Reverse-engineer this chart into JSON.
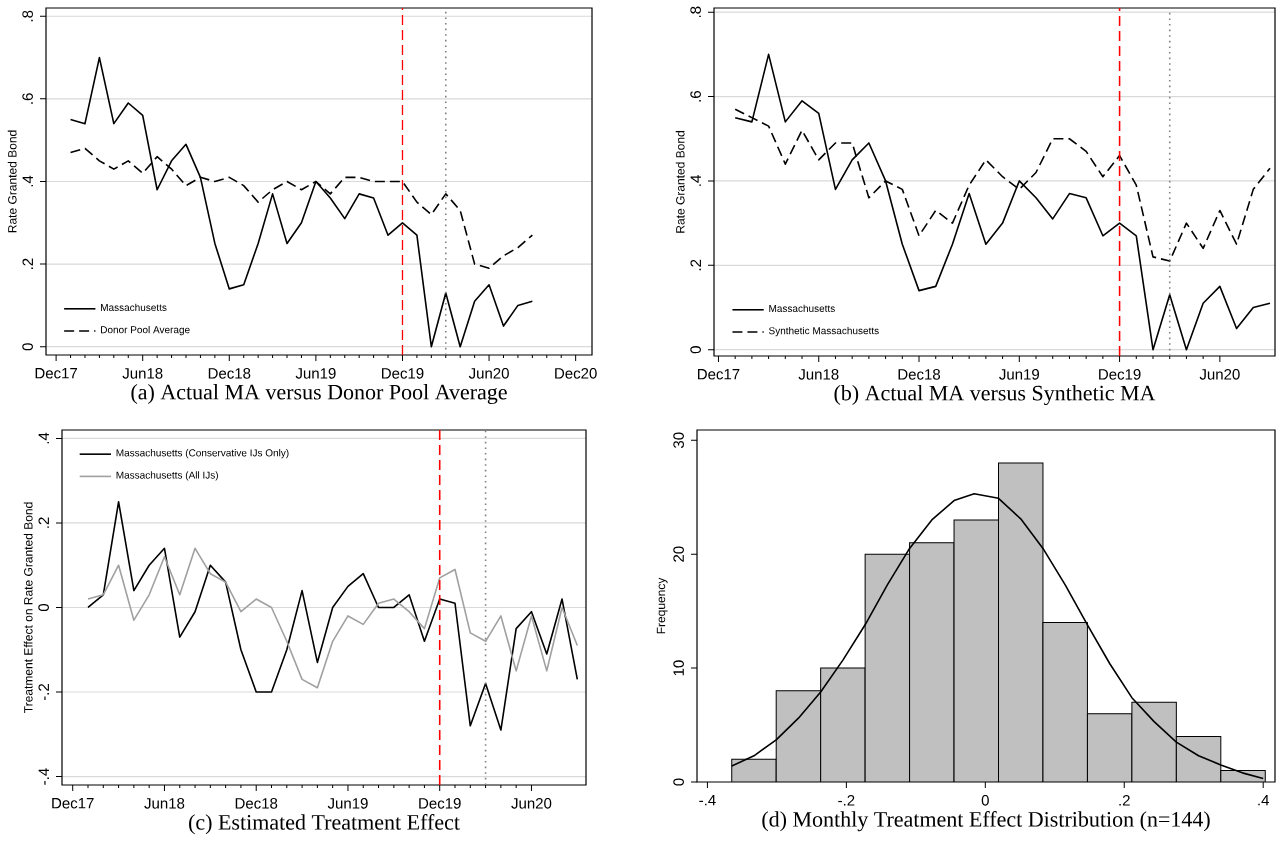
{
  "chart_data": [
    {
      "type": "line",
      "title": "(a) Actual MA versus Donor Pool Average",
      "ylabel": "Rate Granted Bond",
      "x": [
        "2018-01",
        "2018-02",
        "2018-03",
        "2018-04",
        "2018-05",
        "2018-06",
        "2018-07",
        "2018-08",
        "2018-09",
        "2018-10",
        "2018-11",
        "2018-12",
        "2019-01",
        "2019-02",
        "2019-03",
        "2019-04",
        "2019-05",
        "2019-06",
        "2019-07",
        "2019-08",
        "2019-09",
        "2019-10",
        "2019-11",
        "2019-12",
        "2020-01",
        "2020-02",
        "2020-03",
        "2020-04",
        "2020-05",
        "2020-06",
        "2020-07",
        "2020-08",
        "2020-09"
      ],
      "series": [
        {
          "name": "Massachusetts",
          "color": "#000000",
          "line_style": "solid",
          "values": [
            0.55,
            0.54,
            0.7,
            0.54,
            0.59,
            0.56,
            0.38,
            0.45,
            0.49,
            0.41,
            0.25,
            0.14,
            0.15,
            0.25,
            0.37,
            0.25,
            0.3,
            0.4,
            0.36,
            0.31,
            0.37,
            0.36,
            0.27,
            0.3,
            0.27,
            0.0,
            0.13,
            0.0,
            0.11,
            0.15,
            0.05,
            0.1,
            0.11
          ]
        },
        {
          "name": "Donor Pool Average",
          "color": "#000000",
          "line_style": "dashed",
          "values": [
            0.47,
            0.48,
            0.45,
            0.43,
            0.45,
            0.42,
            0.46,
            0.43,
            0.39,
            0.41,
            0.4,
            0.41,
            0.39,
            0.35,
            0.38,
            0.4,
            0.38,
            0.4,
            0.37,
            0.41,
            0.41,
            0.4,
            0.4,
            0.4,
            0.35,
            0.32,
            0.37,
            0.33,
            0.2,
            0.19,
            0.22,
            0.24,
            0.27
          ]
        }
      ],
      "xlim": [
        "2017-11-10",
        "2021-01-05"
      ],
      "ylim": [
        -0.02,
        0.82
      ],
      "xticks": [
        {
          "value": "2017-12",
          "label": "Dec17"
        },
        {
          "value": "2018-06",
          "label": "Jun18"
        },
        {
          "value": "2018-12",
          "label": "Dec18"
        },
        {
          "value": "2019-06",
          "label": "Jun19"
        },
        {
          "value": "2019-12",
          "label": "Dec19"
        },
        {
          "value": "2020-06",
          "label": "Jun20"
        },
        {
          "value": "2020-12",
          "label": "Dec20"
        }
      ],
      "yticks": [
        0,
        {
          "value": 0.2,
          "label": ".2"
        },
        {
          "value": 0.4,
          "label": ".4"
        },
        {
          "value": 0.6,
          "label": ".6"
        },
        {
          "value": 0.8,
          "label": ".8"
        }
      ],
      "ref_lines": [
        {
          "axis": "x",
          "value": "2019-12",
          "color": "#ff0000",
          "line_style": "dashed"
        },
        {
          "axis": "x",
          "value": "2020-03",
          "color": "#808080",
          "line_style": "dotted"
        }
      ],
      "grid": "y",
      "legend": "bottom left"
    },
    {
      "type": "line",
      "title": "(b) Actual MA versus Synthetic MA",
      "ylabel": "Rate Granted Bond",
      "x": [
        "2018-01",
        "2018-02",
        "2018-03",
        "2018-04",
        "2018-05",
        "2018-06",
        "2018-07",
        "2018-08",
        "2018-09",
        "2018-10",
        "2018-11",
        "2018-12",
        "2019-01",
        "2019-02",
        "2019-03",
        "2019-04",
        "2019-05",
        "2019-06",
        "2019-07",
        "2019-08",
        "2019-09",
        "2019-10",
        "2019-11",
        "2019-12",
        "2020-01",
        "2020-02",
        "2020-03",
        "2020-04",
        "2020-05",
        "2020-06",
        "2020-07",
        "2020-08",
        "2020-09"
      ],
      "series": [
        {
          "name": "Massachusetts",
          "color": "#000000",
          "line_style": "solid",
          "values": [
            0.55,
            0.54,
            0.7,
            0.54,
            0.59,
            0.56,
            0.38,
            0.45,
            0.49,
            0.4,
            0.25,
            0.14,
            0.15,
            0.25,
            0.37,
            0.25,
            0.3,
            0.4,
            0.36,
            0.31,
            0.37,
            0.36,
            0.27,
            0.3,
            0.27,
            0.0,
            0.13,
            0.0,
            0.11,
            0.15,
            0.05,
            0.1,
            0.11
          ]
        },
        {
          "name": "Synthetic Massachusetts",
          "color": "#000000",
          "line_style": "dashed",
          "values": [
            0.57,
            0.55,
            0.53,
            0.44,
            0.52,
            0.45,
            0.49,
            0.49,
            0.36,
            0.4,
            0.38,
            0.27,
            0.33,
            0.3,
            0.39,
            0.45,
            0.41,
            0.38,
            0.42,
            0.5,
            0.5,
            0.47,
            0.41,
            0.46,
            0.39,
            0.22,
            0.21,
            0.3,
            0.24,
            0.33,
            0.25,
            0.38,
            0.43
          ]
        }
      ],
      "xlim": [
        "2017-11-23",
        "2020-09-10"
      ],
      "ylim": [
        -0.015,
        0.81
      ],
      "xticks": [
        {
          "value": "2017-12",
          "label": "Dec17"
        },
        {
          "value": "2018-06",
          "label": "Jun18"
        },
        {
          "value": "2018-12",
          "label": "Dec18"
        },
        {
          "value": "2019-06",
          "label": "Jun19"
        },
        {
          "value": "2019-12",
          "label": "Dec19"
        },
        {
          "value": "2020-06",
          "label": "Jun20"
        }
      ],
      "yticks": [
        0,
        {
          "value": 0.2,
          "label": ".2"
        },
        {
          "value": 0.4,
          "label": ".4"
        },
        {
          "value": 0.6,
          "label": ".6"
        },
        {
          "value": 0.8,
          "label": ".8"
        }
      ],
      "ref_lines": [
        {
          "axis": "x",
          "value": "2019-12",
          "color": "#ff0000",
          "line_style": "dashed"
        },
        {
          "axis": "x",
          "value": "2020-03",
          "color": "#808080",
          "line_style": "dotted"
        }
      ],
      "grid": "y",
      "legend": "bottom left"
    },
    {
      "type": "line",
      "title": "(c) Estimated Treatment Effect",
      "ylabel": "Treatment Effect on Rate Granted Bond",
      "x": [
        "2018-01",
        "2018-02",
        "2018-03",
        "2018-04",
        "2018-05",
        "2018-06",
        "2018-07",
        "2018-08",
        "2018-09",
        "2018-10",
        "2018-11",
        "2018-12",
        "2019-01",
        "2019-02",
        "2019-03",
        "2019-04",
        "2019-05",
        "2019-06",
        "2019-07",
        "2019-08",
        "2019-09",
        "2019-10",
        "2019-11",
        "2019-12",
        "2020-01",
        "2020-02",
        "2020-03",
        "2020-04",
        "2020-05",
        "2020-06",
        "2020-07",
        "2020-08",
        "2020-09"
      ],
      "series": [
        {
          "name": "Massachusetts (Conservative IJs Only)",
          "color": "#000000",
          "line_style": "solid",
          "values": [
            0.0,
            0.03,
            0.25,
            0.04,
            0.1,
            0.14,
            -0.07,
            -0.01,
            0.1,
            0.06,
            -0.1,
            -0.2,
            -0.2,
            -0.1,
            0.04,
            -0.13,
            0.0,
            0.05,
            0.08,
            0.0,
            0.0,
            0.03,
            -0.08,
            0.02,
            0.01,
            -0.28,
            -0.18,
            -0.29,
            -0.05,
            -0.01,
            -0.11,
            0.02,
            -0.17
          ]
        },
        {
          "name": "Massachusetts (All IJs)",
          "color": "#a0a0a0",
          "line_style": "solid",
          "values": [
            0.02,
            0.03,
            0.1,
            -0.03,
            0.03,
            0.12,
            0.03,
            0.14,
            0.08,
            0.06,
            -0.01,
            0.02,
            0.0,
            -0.08,
            -0.17,
            -0.19,
            -0.08,
            -0.02,
            -0.04,
            0.01,
            0.02,
            -0.01,
            -0.05,
            0.07,
            0.09,
            -0.06,
            -0.08,
            -0.02,
            -0.15,
            -0.02,
            -0.15,
            0.0,
            -0.09
          ]
        }
      ],
      "xlim": [
        "2017-11-10",
        "2020-09-18"
      ],
      "ylim": [
        -0.42,
        0.42
      ],
      "xticks": [
        {
          "value": "2017-12",
          "label": "Dec17"
        },
        {
          "value": "2018-06",
          "label": "Jun18"
        },
        {
          "value": "2018-12",
          "label": "Dec18"
        },
        {
          "value": "2019-06",
          "label": "Jun19"
        },
        {
          "value": "2019-12",
          "label": "Dec19"
        },
        {
          "value": "2020-06",
          "label": "Jun20"
        }
      ],
      "yticks": [
        {
          "value": -0.4,
          "label": "-.4"
        },
        {
          "value": -0.2,
          "label": "-.2"
        },
        0,
        {
          "value": 0.2,
          "label": ".2"
        },
        {
          "value": 0.4,
          "label": ".4"
        }
      ],
      "ref_lines": [
        {
          "axis": "x",
          "value": "2019-12",
          "color": "#ff0000",
          "line_style": "dashed"
        },
        {
          "axis": "x",
          "value": "2020-03",
          "color": "#808080",
          "line_style": "dotted"
        }
      ],
      "grid": "y",
      "legend": "top left"
    },
    {
      "type": "histogram",
      "title": "(d) Monthly Treatment Effect Distribution (n=144)",
      "ylabel": "Frequency",
      "series": [
        {
          "type": "histogram",
          "color": "#c0c0c0",
          "bins": [
            -0.365,
            -0.301,
            -0.237,
            -0.173,
            -0.109,
            -0.045,
            0.019,
            0.083,
            0.147,
            0.211,
            0.275,
            0.339,
            0.403
          ],
          "values": [
            2,
            8,
            10,
            20,
            21,
            23,
            28,
            14,
            6,
            7,
            4,
            1
          ]
        },
        {
          "type": "line",
          "color": "#000000",
          "line_style": "solid",
          "x": [
            -0.365,
            -0.333,
            -0.301,
            -0.269,
            -0.237,
            -0.205,
            -0.173,
            -0.141,
            -0.109,
            -0.077,
            -0.045,
            -0.016,
            0.019,
            0.051,
            0.083,
            0.115,
            0.147,
            0.179,
            0.211,
            0.243,
            0.275,
            0.307,
            0.339,
            0.37,
            0.4
          ],
          "values": [
            1.4,
            2.3,
            3.7,
            5.6,
            7.9,
            10.7,
            13.8,
            17.3,
            20.5,
            23.0,
            24.7,
            25.3,
            24.9,
            23.1,
            20.5,
            17.3,
            13.8,
            10.4,
            7.4,
            5.3,
            3.5,
            2.3,
            1.5,
            0.8,
            0.3
          ]
        }
      ],
      "xlim": [
        -0.415,
        0.417
      ],
      "ylim": [
        0,
        30.9
      ],
      "xticks": [
        {
          "value": -0.4,
          "label": "-.4"
        },
        {
          "value": -0.2,
          "label": "-.2"
        },
        0,
        {
          "value": 0.2,
          "label": ".2"
        },
        {
          "value": 0.4,
          "label": ".4"
        }
      ],
      "yticks": [
        0,
        10,
        20,
        30
      ]
    }
  ]
}
